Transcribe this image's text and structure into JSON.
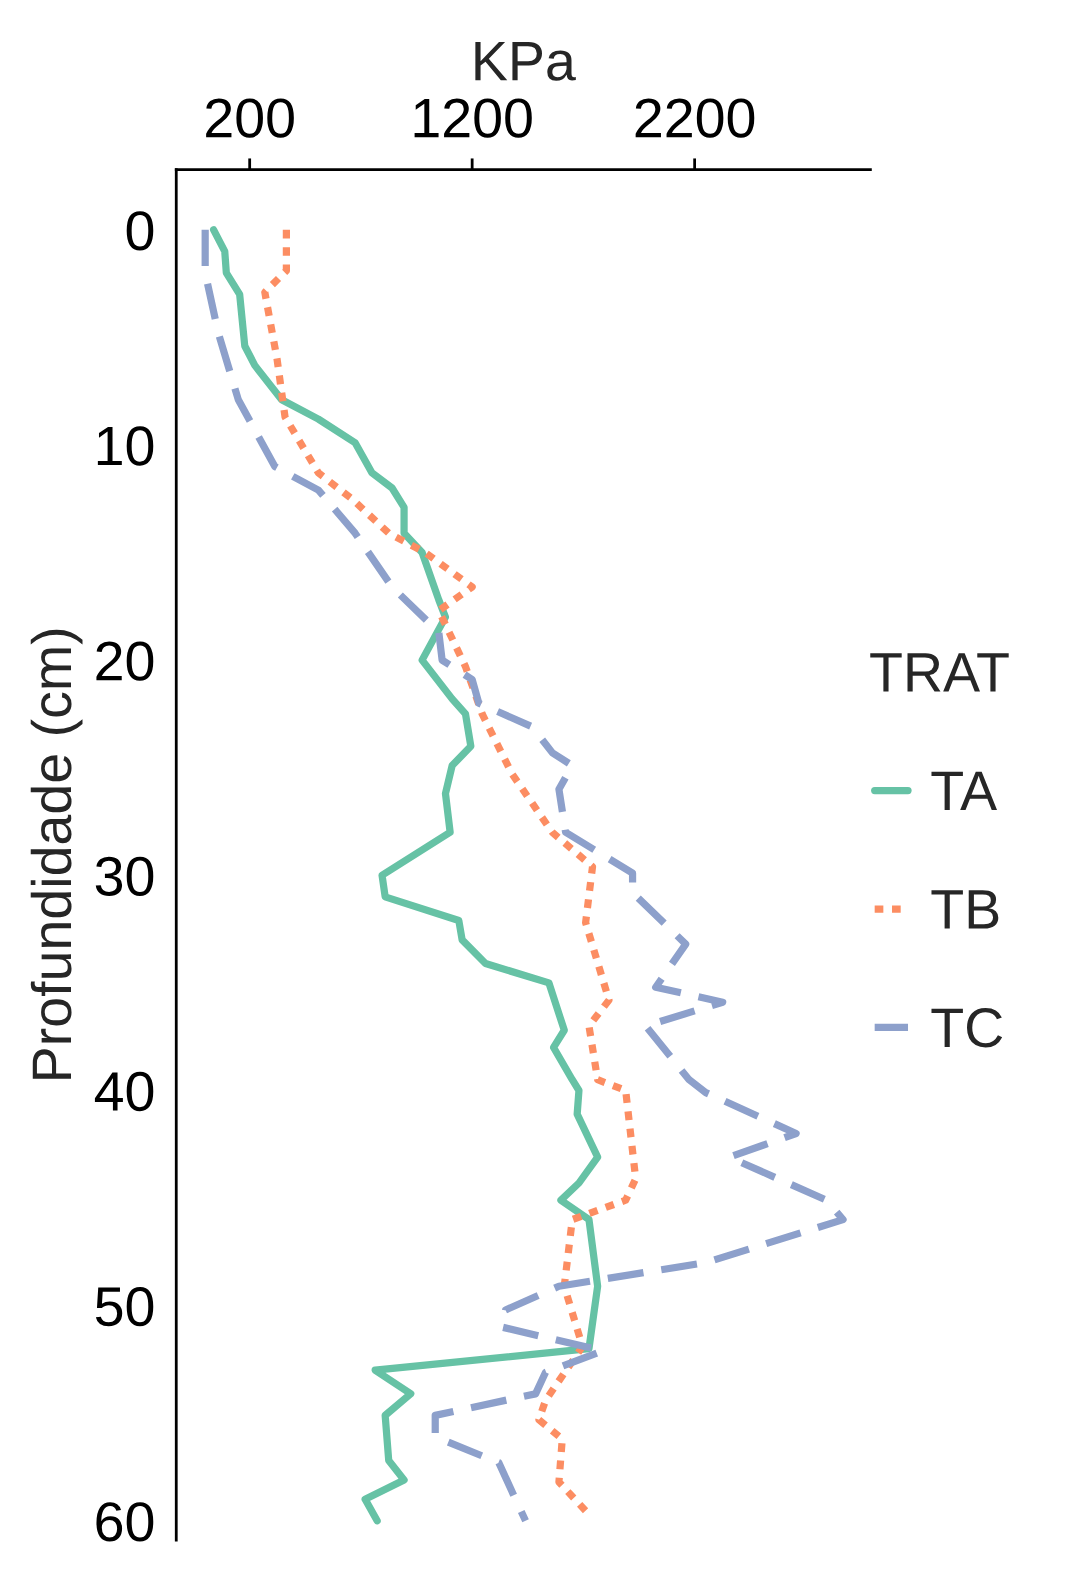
{
  "chart_data": {
    "type": "line",
    "xlabel": "KPa",
    "ylabel": "Profundidade (cm)",
    "legend_title": "TRAT",
    "legend": "right",
    "grid": false,
    "xlim": [
      -130,
      2990
    ],
    "xticks": [
      200,
      1200,
      2200
    ],
    "ylim": [
      60.9,
      -2.8
    ],
    "yticks": [
      0,
      10,
      20,
      30,
      40,
      50,
      60
    ],
    "series": [
      {
        "name": "TA",
        "color": "#66c2a5",
        "line_style": "solid",
        "x": [
          38,
          88,
          95,
          155,
          178,
          223,
          344,
          509,
          674,
          750,
          840,
          894,
          894,
          975,
          1050,
          1080,
          975,
          1110,
          1170,
          1194,
          1110,
          1080,
          1101,
          795,
          809,
          1140,
          1155,
          1260,
          1545,
          1614,
          1566,
          1650,
          1680,
          1672,
          1764,
          1680,
          1599,
          1725,
          1764,
          1725,
          764,
          924,
          809,
          825,
          894,
          719,
          773
        ],
        "values": [
          0,
          1.0,
          2.0,
          3.0,
          5.4,
          6.3,
          7.9,
          8.8,
          9.9,
          11.3,
          12.0,
          12.9,
          14.1,
          15.0,
          17.2,
          18.0,
          20.0,
          21.8,
          22.5,
          24.0,
          24.9,
          26.2,
          28.0,
          30.0,
          31.0,
          32.1,
          33.0,
          34.1,
          35.0,
          37.2,
          38.0,
          39.5,
          40.0,
          41.1,
          43.1,
          44.3,
          45.1,
          46.0,
          49.1,
          52.0,
          53.0,
          54.1,
          55.1,
          57.2,
          58.1,
          59.0,
          60.0
        ]
      },
      {
        "name": "TB",
        "color": "#fc8d62",
        "line_style": "dotted",
        "x": [
          365,
          365,
          268,
          323,
          359,
          509,
          659,
          825,
          989,
          1200,
          1050,
          1170,
          1245,
          1380,
          1560,
          1741,
          1710,
          1815,
          1725,
          1764,
          1890,
          1935,
          1890,
          1650,
          1614,
          1696,
          1530,
          1500,
          1605,
          1590,
          1725
        ],
        "values": [
          0,
          1.9,
          2.9,
          6.0,
          8.7,
          11.3,
          12.5,
          14.1,
          15.0,
          16.6,
          17.7,
          20.3,
          22.5,
          25.3,
          28.0,
          29.6,
          32.2,
          35.8,
          37.0,
          39.5,
          40.0,
          44.1,
          45.1,
          46.0,
          49.1,
          51.9,
          54.4,
          55.3,
          56.2,
          58.2,
          59.7
        ]
      },
      {
        "name": "TC",
        "color": "#8da0cb",
        "line_style": "dashed",
        "x": [
          0,
          0,
          59,
          149,
          313,
          419,
          509,
          674,
          840,
          1050,
          1065,
          1200,
          1230,
          1470,
          1560,
          1650,
          1590,
          1620,
          1921,
          1921,
          2160,
          2025,
          2326,
          1980,
          2175,
          2250,
          2656,
          2356,
          2792,
          2867,
          2250,
          1590,
          1350,
          1335,
          1786,
          1530,
          1485,
          1034,
          1034,
          1320,
          1395,
          1440
        ],
        "values": [
          0,
          2.0,
          4.8,
          7.9,
          11.0,
          11.6,
          12.1,
          14.1,
          16.6,
          18.7,
          20.0,
          20.9,
          22.0,
          23.1,
          24.3,
          24.9,
          26.0,
          28.0,
          29.9,
          30.8,
          33.2,
          35.2,
          35.9,
          37.0,
          39.5,
          40.1,
          42.0,
          43.1,
          45.1,
          46.0,
          48.0,
          49.1,
          50.2,
          51.0,
          52.1,
          53.1,
          54.1,
          55.1,
          56.1,
          57.3,
          59.0,
          60.0
        ]
      }
    ]
  }
}
